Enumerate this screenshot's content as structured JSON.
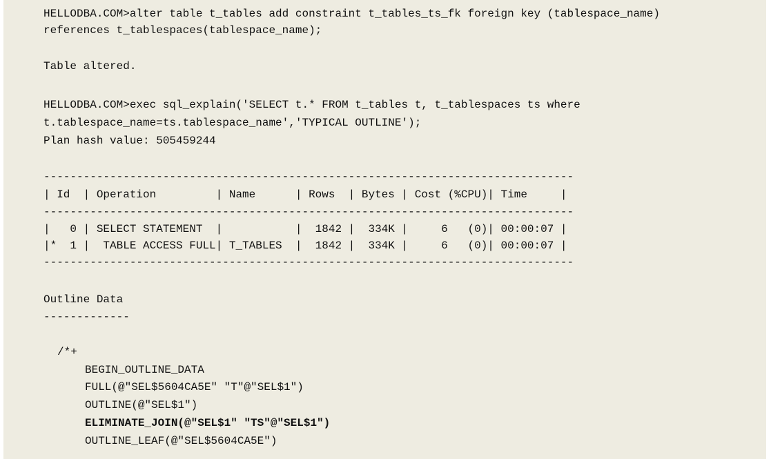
{
  "lines": [
    "HELLODBA.COM>alter table t_tables add constraint t_tables_ts_fk foreign key (tablespace_name)",
    "references t_tablespaces(tablespace_name);",
    "Table altered.",
    "HELLODBA.COM>exec sql_explain('SELECT t.* FROM t_tables t, t_tablespaces ts where",
    "t.tablespace_name=ts.tablespace_name','TYPICAL OUTLINE');",
    "Plan hash value: 505459244",
    "--------------------------------------------------------------------------------",
    "| Id  | Operation         | Name      | Rows  | Bytes | Cost (%CPU)| Time     |",
    "--------------------------------------------------------------------------------",
    "|   0 | SELECT STATEMENT  |           |  1842 |  334K |     6   (0)| 00:00:07 |",
    "|*  1 |  TABLE ACCESS FULL| T_TABLES  |  1842 |  334K |     6   (0)| 00:00:07 |",
    "--------------------------------------------------------------------------------",
    "Outline Data",
    "-------------",
    "/*+",
    "BEGIN_OUTLINE_DATA",
    "FULL(@\"SEL$5604CA5E\" \"T\"@\"SEL$1\")",
    "OUTLINE(@\"SEL$1\")",
    "ELIMINATE_JOIN(@\"SEL$1\" \"TS\"@\"SEL$1\")",
    "OUTLINE_LEAF(@\"SEL$5604CA5E\")"
  ]
}
